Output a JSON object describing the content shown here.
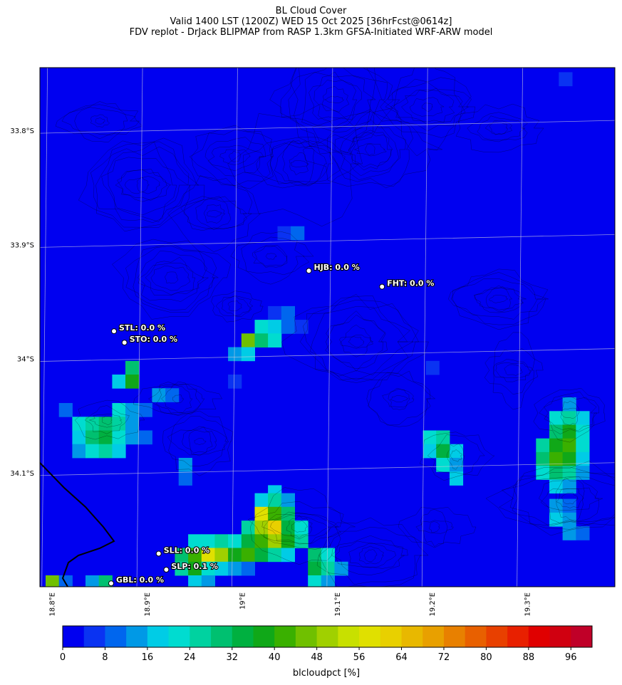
{
  "header": {
    "title": "BL Cloud Cover",
    "subtitle": "Valid 1400 LST (1200Z) WED 15 Oct 2025 [36hrFcst@0614z]",
    "source": "FDV replot - DrJack BLIPMAP from RASP 1.3km GFSA-Initiated WRF-ARW model"
  },
  "chart_data": {
    "type": "heatmap",
    "title": "BL Cloud Cover",
    "variable_label": "blcloudpct [%]",
    "colorbar": {
      "min": 0,
      "max": 100,
      "step": 4,
      "ticks": [
        0,
        8,
        16,
        24,
        32,
        40,
        48,
        56,
        64,
        72,
        80,
        88,
        96
      ],
      "tick_labels": [
        "0",
        "8",
        "16",
        "24",
        "32",
        "40",
        "48",
        "56",
        "64",
        "72",
        "80",
        "88",
        "96"
      ],
      "colors": [
        "#0000f0",
        "#0a33f2",
        "#0066ee",
        "#0099e6",
        "#00cce6",
        "#00dcd0",
        "#00d2a0",
        "#00c070",
        "#00b040",
        "#10a818",
        "#3ab000",
        "#70c000",
        "#a0d000",
        "#c8e000",
        "#e0e000",
        "#e8d000",
        "#e8b800",
        "#e8a000",
        "#e88000",
        "#e86000",
        "#e84000",
        "#e82000",
        "#e00000",
        "#d00010",
        "#c00028"
      ]
    },
    "lat_ticks": [
      "33.8°S",
      "33.9°S",
      "34°S",
      "34.1°S"
    ],
    "lon_ticks": [
      "18.8°E",
      "18.9°E",
      "19°E",
      "19.1°E",
      "19.2°E",
      "19.3°E"
    ],
    "lat_range": [
      -34.2,
      -33.745
    ],
    "lon_range": [
      18.795,
      19.4
    ],
    "grid": true,
    "sites": [
      {
        "id": "HJB",
        "label": "HJB: 0.0 %",
        "lat": -33.923,
        "lon": 19.078,
        "value": 0.0
      },
      {
        "id": "FHT",
        "label": "FHT: 0.0 %",
        "lat": -33.937,
        "lon": 19.155,
        "value": 0.0
      },
      {
        "id": "STL",
        "label": "STL: 0.0 %",
        "lat": -33.976,
        "lon": 18.873,
        "value": 0.0
      },
      {
        "id": "STO",
        "label": "STO: 0.0 %",
        "lat": -33.986,
        "lon": 18.884,
        "value": 0.0
      },
      {
        "id": "SLL",
        "label": "SLL: 0.0 %",
        "lat": -34.171,
        "lon": 18.92,
        "value": 0.0
      },
      {
        "id": "SLP",
        "label": "SLP: 0.1 %",
        "lat": -34.185,
        "lon": 18.928,
        "value": 0.1
      },
      {
        "id": "GBL",
        "label": "GBL: 0.0 %",
        "lat": -34.197,
        "lon": 18.87,
        "value": 0.0
      }
    ],
    "cloud_patches": [
      {
        "lat": -33.755,
        "lon": 19.348,
        "value": 6
      },
      {
        "lat": -33.89,
        "lon": 19.052,
        "value": 4
      },
      {
        "lat": -33.89,
        "lon": 19.066,
        "value": 8
      },
      {
        "lat": -33.96,
        "lon": 19.042,
        "value": 4
      },
      {
        "lat": -33.96,
        "lon": 19.056,
        "value": 10
      },
      {
        "lat": -33.972,
        "lon": 19.028,
        "value": 20
      },
      {
        "lat": -33.972,
        "lon": 19.042,
        "value": 16
      },
      {
        "lat": -33.972,
        "lon": 19.056,
        "value": 8
      },
      {
        "lat": -33.972,
        "lon": 19.07,
        "value": 4
      },
      {
        "lat": -33.984,
        "lon": 19.014,
        "value": 44
      },
      {
        "lat": -33.984,
        "lon": 19.028,
        "value": 28
      },
      {
        "lat": -33.984,
        "lon": 19.042,
        "value": 20
      },
      {
        "lat": -33.996,
        "lon": 19.0,
        "value": 12
      },
      {
        "lat": -33.996,
        "lon": 19.014,
        "value": 16
      },
      {
        "lat": -34.008,
        "lon": 19.208,
        "value": 6
      },
      {
        "lat": -34.008,
        "lon": 18.892,
        "value": 28
      },
      {
        "lat": -34.02,
        "lon": 18.878,
        "value": 16
      },
      {
        "lat": -34.02,
        "lon": 18.892,
        "value": 36
      },
      {
        "lat": -34.02,
        "lon": 19.0,
        "value": 6
      },
      {
        "lat": -34.032,
        "lon": 18.92,
        "value": 12
      },
      {
        "lat": -34.032,
        "lon": 18.934,
        "value": 8
      },
      {
        "lat": -34.04,
        "lon": 19.352,
        "value": 14
      },
      {
        "lat": -34.045,
        "lon": 18.822,
        "value": 8
      },
      {
        "lat": -34.045,
        "lon": 18.878,
        "value": 20
      },
      {
        "lat": -34.045,
        "lon": 18.892,
        "value": 12
      },
      {
        "lat": -34.045,
        "lon": 18.906,
        "value": 8
      },
      {
        "lat": -34.052,
        "lon": 19.338,
        "value": 20
      },
      {
        "lat": -34.052,
        "lon": 19.352,
        "value": 24
      },
      {
        "lat": -34.052,
        "lon": 19.366,
        "value": 16
      },
      {
        "lat": -34.057,
        "lon": 18.836,
        "value": 20
      },
      {
        "lat": -34.057,
        "lon": 18.85,
        "value": 24
      },
      {
        "lat": -34.057,
        "lon": 18.864,
        "value": 28
      },
      {
        "lat": -34.057,
        "lon": 18.878,
        "value": 24
      },
      {
        "lat": -34.057,
        "lon": 18.892,
        "value": 12
      },
      {
        "lat": -34.064,
        "lon": 19.338,
        "value": 28
      },
      {
        "lat": -34.064,
        "lon": 19.352,
        "value": 36
      },
      {
        "lat": -34.064,
        "lon": 19.366,
        "value": 20
      },
      {
        "lat": -34.069,
        "lon": 18.836,
        "value": 16
      },
      {
        "lat": -34.069,
        "lon": 18.85,
        "value": 28
      },
      {
        "lat": -34.069,
        "lon": 18.864,
        "value": 32
      },
      {
        "lat": -34.069,
        "lon": 18.878,
        "value": 20
      },
      {
        "lat": -34.069,
        "lon": 18.892,
        "value": 12
      },
      {
        "lat": -34.069,
        "lon": 18.906,
        "value": 8
      },
      {
        "lat": -34.069,
        "lon": 19.205,
        "value": 20
      },
      {
        "lat": -34.069,
        "lon": 19.219,
        "value": 24
      },
      {
        "lat": -34.076,
        "lon": 19.324,
        "value": 24
      },
      {
        "lat": -34.076,
        "lon": 19.338,
        "value": 36
      },
      {
        "lat": -34.076,
        "lon": 19.352,
        "value": 40
      },
      {
        "lat": -34.076,
        "lon": 19.366,
        "value": 20
      },
      {
        "lat": -34.081,
        "lon": 18.836,
        "value": 12
      },
      {
        "lat": -34.081,
        "lon": 18.85,
        "value": 20
      },
      {
        "lat": -34.081,
        "lon": 18.864,
        "value": 24
      },
      {
        "lat": -34.081,
        "lon": 18.878,
        "value": 16
      },
      {
        "lat": -34.081,
        "lon": 19.205,
        "value": 16
      },
      {
        "lat": -34.081,
        "lon": 19.219,
        "value": 32
      },
      {
        "lat": -34.081,
        "lon": 19.233,
        "value": 16
      },
      {
        "lat": -34.088,
        "lon": 19.324,
        "value": 28
      },
      {
        "lat": -34.088,
        "lon": 19.338,
        "value": 40
      },
      {
        "lat": -34.088,
        "lon": 19.352,
        "value": 36
      },
      {
        "lat": -34.088,
        "lon": 19.366,
        "value": 16
      },
      {
        "lat": -34.093,
        "lon": 19.219,
        "value": 20
      },
      {
        "lat": -34.093,
        "lon": 19.233,
        "value": 12
      },
      {
        "lat": -34.093,
        "lon": 18.948,
        "value": 12
      },
      {
        "lat": -34.1,
        "lon": 19.324,
        "value": 20
      },
      {
        "lat": -34.1,
        "lon": 19.338,
        "value": 28
      },
      {
        "lat": -34.1,
        "lon": 19.352,
        "value": 24
      },
      {
        "lat": -34.1,
        "lon": 19.366,
        "value": 12
      },
      {
        "lat": -34.105,
        "lon": 19.233,
        "value": 16
      },
      {
        "lat": -34.105,
        "lon": 18.948,
        "value": 8
      },
      {
        "lat": -34.112,
        "lon": 19.338,
        "value": 16
      },
      {
        "lat": -34.112,
        "lon": 19.352,
        "value": 12
      },
      {
        "lat": -34.117,
        "lon": 19.042,
        "value": 16
      },
      {
        "lat": -34.124,
        "lon": 19.028,
        "value": 16
      },
      {
        "lat": -34.124,
        "lon": 19.042,
        "value": 24
      },
      {
        "lat": -34.124,
        "lon": 19.056,
        "value": 12
      },
      {
        "lat": -34.129,
        "lon": 19.338,
        "value": 12
      },
      {
        "lat": -34.129,
        "lon": 19.352,
        "value": 8
      },
      {
        "lat": -34.136,
        "lon": 19.028,
        "value": 56
      },
      {
        "lat": -34.136,
        "lon": 19.042,
        "value": 40
      },
      {
        "lat": -34.136,
        "lon": 19.056,
        "value": 28
      },
      {
        "lat": -34.141,
        "lon": 19.338,
        "value": 16
      },
      {
        "lat": -34.141,
        "lon": 19.352,
        "value": 12
      },
      {
        "lat": -34.148,
        "lon": 19.014,
        "value": 24
      },
      {
        "lat": -34.148,
        "lon": 19.028,
        "value": 48
      },
      {
        "lat": -34.148,
        "lon": 19.042,
        "value": 60
      },
      {
        "lat": -34.148,
        "lon": 19.056,
        "value": 32
      },
      {
        "lat": -34.148,
        "lon": 19.07,
        "value": 20
      },
      {
        "lat": -34.153,
        "lon": 19.352,
        "value": 12
      },
      {
        "lat": -34.153,
        "lon": 19.366,
        "value": 8
      },
      {
        "lat": -34.16,
        "lon": 18.958,
        "value": 20
      },
      {
        "lat": -34.16,
        "lon": 18.972,
        "value": 20
      },
      {
        "lat": -34.16,
        "lon": 18.986,
        "value": 24
      },
      {
        "lat": -34.16,
        "lon": 19.0,
        "value": 20
      },
      {
        "lat": -34.16,
        "lon": 19.014,
        "value": 32
      },
      {
        "lat": -34.16,
        "lon": 19.028,
        "value": 40
      },
      {
        "lat": -34.16,
        "lon": 19.042,
        "value": 48
      },
      {
        "lat": -34.16,
        "lon": 19.056,
        "value": 36
      },
      {
        "lat": -34.16,
        "lon": 19.07,
        "value": 24
      },
      {
        "lat": -34.172,
        "lon": 18.944,
        "value": 28
      },
      {
        "lat": -34.172,
        "lon": 18.958,
        "value": 40
      },
      {
        "lat": -34.172,
        "lon": 18.972,
        "value": 56
      },
      {
        "lat": -34.172,
        "lon": 18.986,
        "value": 48
      },
      {
        "lat": -34.172,
        "lon": 19.0,
        "value": 36
      },
      {
        "lat": -34.172,
        "lon": 19.014,
        "value": 40
      },
      {
        "lat": -34.172,
        "lon": 19.028,
        "value": 32
      },
      {
        "lat": -34.172,
        "lon": 19.042,
        "value": 24
      },
      {
        "lat": -34.172,
        "lon": 19.056,
        "value": 16
      },
      {
        "lat": -34.172,
        "lon": 19.084,
        "value": 28
      },
      {
        "lat": -34.172,
        "lon": 19.098,
        "value": 20
      },
      {
        "lat": -34.184,
        "lon": 18.944,
        "value": 24
      },
      {
        "lat": -34.184,
        "lon": 18.958,
        "value": 36
      },
      {
        "lat": -34.184,
        "lon": 18.972,
        "value": 20
      },
      {
        "lat": -34.184,
        "lon": 18.986,
        "value": 16
      },
      {
        "lat": -34.184,
        "lon": 19.0,
        "value": 12
      },
      {
        "lat": -34.184,
        "lon": 19.014,
        "value": 8
      },
      {
        "lat": -34.184,
        "lon": 19.084,
        "value": 32
      },
      {
        "lat": -34.184,
        "lon": 19.098,
        "value": 24
      },
      {
        "lat": -34.184,
        "lon": 19.112,
        "value": 12
      },
      {
        "lat": -34.196,
        "lon": 18.958,
        "value": 16
      },
      {
        "lat": -34.196,
        "lon": 18.972,
        "value": 12
      },
      {
        "lat": -34.196,
        "lon": 19.084,
        "value": 20
      },
      {
        "lat": -34.196,
        "lon": 19.098,
        "value": 12
      },
      {
        "lat": -34.196,
        "lon": 18.808,
        "value": 44
      },
      {
        "lat": -34.196,
        "lon": 18.822,
        "value": 8
      },
      {
        "lat": -34.196,
        "lon": 18.85,
        "value": 12
      },
      {
        "lat": -34.196,
        "lon": 18.864,
        "value": 28
      }
    ]
  }
}
